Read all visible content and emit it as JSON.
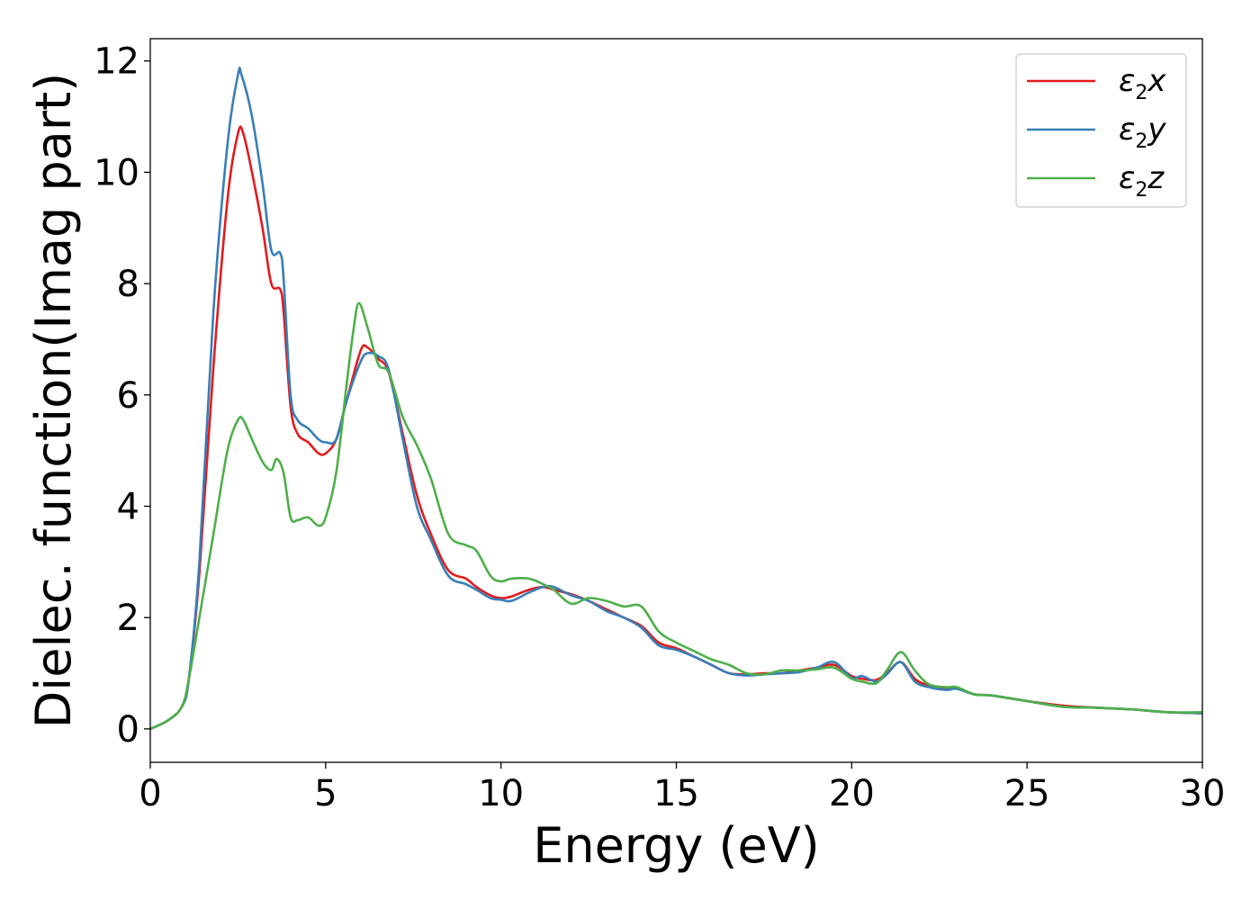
{
  "chart_data": {
    "type": "line",
    "title": "",
    "xlabel": "Energy (eV)",
    "ylabel": "Dielec. function(Imag part)",
    "xlim": [
      0,
      30
    ],
    "ylim": [
      -0.6,
      12.4
    ],
    "xticks": [
      0,
      5,
      10,
      15,
      20,
      25,
      30
    ],
    "yticks": [
      0,
      2,
      4,
      6,
      8,
      10,
      12
    ],
    "grid": false,
    "legend_position": "top-right",
    "series": [
      {
        "name": "ε₂x",
        "legend_main": "ε",
        "legend_sub": "2",
        "legend_var": "x",
        "color": "#e41a1c",
        "x": [
          0,
          0.5,
          0.9,
          1.1,
          1.4,
          1.8,
          2.2,
          2.5,
          2.65,
          2.9,
          3.2,
          3.45,
          3.7,
          3.8,
          4.0,
          4.2,
          4.5,
          4.8,
          5.0,
          5.3,
          5.6,
          6.0,
          6.2,
          6.5,
          6.8,
          7.2,
          7.6,
          8.0,
          8.5,
          9.0,
          9.3,
          9.7,
          10.0,
          10.3,
          10.8,
          11.2,
          11.5,
          12.0,
          12.5,
          13.0,
          13.5,
          14.0,
          14.5,
          15.0,
          15.5,
          16.0,
          16.5,
          17.0,
          17.5,
          18.0,
          18.5,
          19.0,
          19.5,
          20.0,
          20.3,
          20.7,
          21.0,
          21.4,
          21.8,
          22.2,
          22.7,
          23.0,
          23.5,
          24.0,
          25.0,
          26.0,
          27.0,
          28.0,
          29.0,
          30.0
        ],
        "values": [
          0.0,
          0.15,
          0.4,
          0.9,
          2.8,
          6.5,
          9.5,
          10.7,
          10.7,
          10.0,
          9.0,
          8.0,
          7.9,
          7.5,
          5.8,
          5.3,
          5.15,
          4.95,
          4.95,
          5.2,
          5.9,
          6.8,
          6.85,
          6.65,
          6.4,
          5.3,
          4.2,
          3.5,
          2.85,
          2.7,
          2.55,
          2.4,
          2.35,
          2.38,
          2.5,
          2.55,
          2.5,
          2.42,
          2.3,
          2.15,
          2.0,
          1.85,
          1.55,
          1.45,
          1.3,
          1.15,
          1.0,
          0.98,
          1.0,
          1.0,
          1.05,
          1.1,
          1.15,
          0.95,
          0.9,
          0.88,
          1.0,
          1.2,
          0.9,
          0.78,
          0.72,
          0.73,
          0.62,
          0.6,
          0.5,
          0.42,
          0.38,
          0.35,
          0.3,
          0.28
        ]
      },
      {
        "name": "ε₂y",
        "legend_main": "ε",
        "legend_sub": "2",
        "legend_var": "y",
        "color": "#377eb8",
        "x": [
          0,
          0.5,
          0.9,
          1.1,
          1.4,
          1.8,
          2.2,
          2.5,
          2.6,
          2.9,
          3.2,
          3.45,
          3.7,
          3.8,
          4.0,
          4.2,
          4.5,
          4.8,
          5.0,
          5.3,
          5.6,
          6.0,
          6.2,
          6.5,
          6.8,
          7.2,
          7.6,
          8.0,
          8.5,
          9.0,
          9.3,
          9.7,
          10.0,
          10.3,
          10.8,
          11.2,
          11.5,
          12.0,
          12.5,
          13.0,
          13.5,
          14.0,
          14.5,
          15.0,
          15.5,
          16.0,
          16.5,
          17.0,
          17.5,
          18.0,
          18.5,
          19.0,
          19.5,
          20.0,
          20.3,
          20.7,
          21.0,
          21.4,
          21.8,
          22.2,
          22.7,
          23.0,
          23.5,
          24.0,
          25.0,
          26.0,
          27.0,
          28.0,
          29.0,
          30.0
        ],
        "values": [
          0.0,
          0.15,
          0.4,
          0.9,
          3.0,
          7.5,
          10.5,
          11.75,
          11.75,
          11.0,
          9.8,
          8.6,
          8.55,
          8.1,
          6.0,
          5.55,
          5.4,
          5.2,
          5.15,
          5.2,
          5.9,
          6.6,
          6.75,
          6.7,
          6.45,
          5.2,
          4.0,
          3.4,
          2.75,
          2.6,
          2.5,
          2.35,
          2.32,
          2.3,
          2.45,
          2.55,
          2.55,
          2.4,
          2.3,
          2.12,
          2.0,
          1.82,
          1.5,
          1.42,
          1.3,
          1.15,
          1.0,
          0.96,
          0.98,
          1.0,
          1.02,
          1.1,
          1.2,
          0.92,
          0.95,
          0.85,
          0.98,
          1.2,
          0.85,
          0.75,
          0.7,
          0.72,
          0.62,
          0.6,
          0.5,
          0.4,
          0.38,
          0.35,
          0.3,
          0.28
        ]
      },
      {
        "name": "ε₂z",
        "legend_main": "ε",
        "legend_sub": "2",
        "legend_var": "z",
        "color": "#4daf4a",
        "x": [
          0,
          0.5,
          0.9,
          1.1,
          1.4,
          1.8,
          2.2,
          2.5,
          2.65,
          2.9,
          3.2,
          3.45,
          3.6,
          3.8,
          4.0,
          4.2,
          4.5,
          4.8,
          5.0,
          5.3,
          5.6,
          5.8,
          5.95,
          6.2,
          6.5,
          6.8,
          7.2,
          7.6,
          8.0,
          8.5,
          9.0,
          9.3,
          9.7,
          10.0,
          10.3,
          10.8,
          11.2,
          11.5,
          12.0,
          12.5,
          13.0,
          13.5,
          14.0,
          14.5,
          15.0,
          15.5,
          16.0,
          16.5,
          17.0,
          17.5,
          18.0,
          18.5,
          19.0,
          19.5,
          20.0,
          20.3,
          20.7,
          21.0,
          21.4,
          21.8,
          22.2,
          22.7,
          23.0,
          23.5,
          24.0,
          25.0,
          26.0,
          27.0,
          28.0,
          29.0,
          30.0
        ],
        "values": [
          0.0,
          0.15,
          0.4,
          0.9,
          2.0,
          3.5,
          5.0,
          5.55,
          5.55,
          5.2,
          4.8,
          4.65,
          4.85,
          4.6,
          3.8,
          3.75,
          3.8,
          3.65,
          3.8,
          4.6,
          6.2,
          7.2,
          7.65,
          7.2,
          6.55,
          6.4,
          5.6,
          5.1,
          4.5,
          3.5,
          3.3,
          3.2,
          2.75,
          2.65,
          2.7,
          2.7,
          2.6,
          2.5,
          2.25,
          2.35,
          2.3,
          2.2,
          2.2,
          1.75,
          1.55,
          1.4,
          1.25,
          1.15,
          1.0,
          0.98,
          1.05,
          1.05,
          1.07,
          1.1,
          0.9,
          0.85,
          0.82,
          1.05,
          1.38,
          1.05,
          0.8,
          0.75,
          0.75,
          0.62,
          0.6,
          0.5,
          0.4,
          0.38,
          0.35,
          0.3,
          0.3
        ]
      }
    ]
  }
}
